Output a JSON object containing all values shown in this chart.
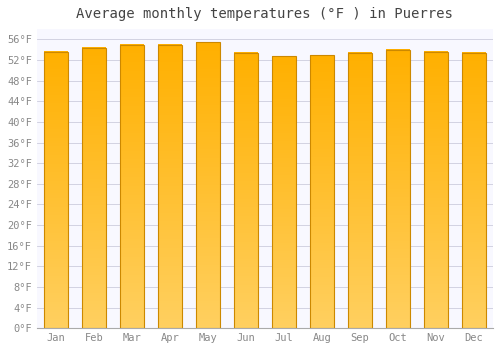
{
  "title": "Average monthly temperatures (°F ) in Puerres",
  "months": [
    "Jan",
    "Feb",
    "Mar",
    "Apr",
    "May",
    "Jun",
    "Jul",
    "Aug",
    "Sep",
    "Oct",
    "Nov",
    "Dec"
  ],
  "values": [
    53.6,
    54.3,
    54.9,
    54.9,
    55.4,
    53.4,
    52.7,
    52.9,
    53.4,
    54.0,
    53.6,
    53.4
  ],
  "bar_color_light": "#FFD060",
  "bar_color_dark": "#FFB000",
  "bar_edge_color": "#CC8800",
  "background_color": "#FFFFFF",
  "plot_bg_color": "#F8F8FF",
  "grid_color": "#CCCCDD",
  "text_color": "#888888",
  "title_color": "#444444",
  "ylim": [
    0,
    58
  ],
  "yticks": [
    0,
    4,
    8,
    12,
    16,
    20,
    24,
    28,
    32,
    36,
    40,
    44,
    48,
    52,
    56
  ],
  "title_fontsize": 10,
  "tick_fontsize": 7.5
}
